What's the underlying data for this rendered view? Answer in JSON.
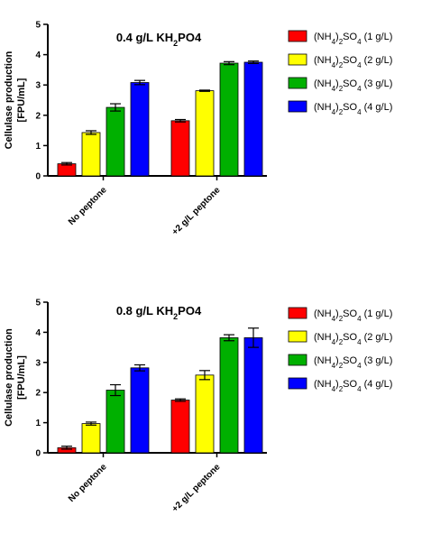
{
  "chart_data": [
    {
      "type": "bar",
      "title": "0.4 g/L KH2PO4",
      "title_parts": {
        "pre": "0.4 g/L KH",
        "sub": "2",
        "post": "PO4"
      },
      "ylabel": "Cellulase production",
      "ylabel_unit": "[FPU/mL]",
      "ylim": [
        0,
        5
      ],
      "yticks": [
        0,
        1,
        2,
        3,
        4,
        5
      ],
      "categories": [
        "No peptone",
        "+2 g/L peptone"
      ],
      "grid": false,
      "legend_position": "right",
      "series": [
        {
          "name": "(NH4)2SO4 (1 g/L)",
          "color": "#ff0000",
          "values": [
            0.4,
            1.82
          ],
          "errors": [
            0.04,
            0.04
          ]
        },
        {
          "name": "(NH4)2SO4 (2 g/L)",
          "color": "#ffff00",
          "values": [
            1.43,
            2.81
          ],
          "errors": [
            0.06,
            0.02
          ]
        },
        {
          "name": "(NH4)2SO4 (3 g/L)",
          "color": "#00b000",
          "values": [
            2.26,
            3.72
          ],
          "errors": [
            0.12,
            0.05
          ]
        },
        {
          "name": "(NH4)2SO4 (4 g/L)",
          "color": "#0000ff",
          "values": [
            3.08,
            3.75
          ],
          "errors": [
            0.07,
            0.04
          ]
        }
      ]
    },
    {
      "type": "bar",
      "title": "0.8 g/L KH2PO4",
      "title_parts": {
        "pre": "0.8 g/L KH",
        "sub": "2",
        "post": "PO4"
      },
      "ylabel": "Cellulase production",
      "ylabel_unit": "[FPU/mL]",
      "ylim": [
        0,
        5
      ],
      "yticks": [
        0,
        1,
        2,
        3,
        4,
        5
      ],
      "categories": [
        "No peptone",
        "+2 g/L peptone"
      ],
      "grid": false,
      "legend_position": "right",
      "series": [
        {
          "name": "(NH4)2SO4 (1 g/L)",
          "color": "#ff0000",
          "values": [
            0.17,
            1.75
          ],
          "errors": [
            0.05,
            0.04
          ]
        },
        {
          "name": "(NH4)2SO4 (2 g/L)",
          "color": "#ffff00",
          "values": [
            0.97,
            2.58
          ],
          "errors": [
            0.05,
            0.15
          ]
        },
        {
          "name": "(NH4)2SO4 (3 g/L)",
          "color": "#00b000",
          "values": [
            2.08,
            3.82
          ],
          "errors": [
            0.18,
            0.1
          ]
        },
        {
          "name": "(NH4)2SO4 (4 g/L)",
          "color": "#0000ff",
          "values": [
            2.82,
            3.82
          ],
          "errors": [
            0.1,
            0.32
          ]
        }
      ]
    }
  ]
}
